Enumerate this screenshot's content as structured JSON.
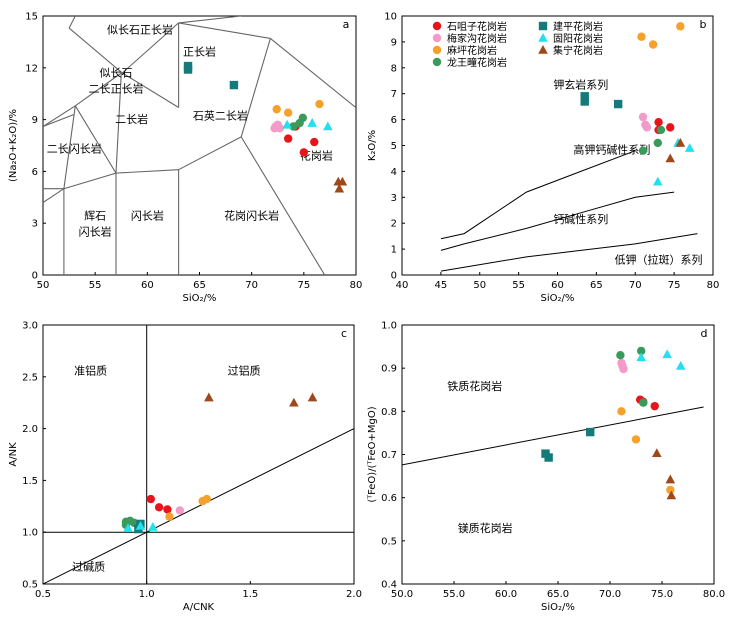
{
  "series_styles": [
    {
      "key": "shimingzi",
      "name": "石咀子花岗岩",
      "marker": "circle",
      "color": "#e8141c"
    },
    {
      "key": "meijiagou",
      "name": "梅家沟花岗岩",
      "marker": "circle",
      "color": "#f49ac8"
    },
    {
      "key": "mapo",
      "name": "麻坪花岗岩",
      "marker": "circle",
      "color": "#f5a12b"
    },
    {
      "key": "longwangzhuang",
      "name": "龙王疃花岗岩",
      "marker": "circle",
      "color": "#3a9a5c"
    },
    {
      "key": "jianping",
      "name": "建平花岗岩",
      "marker": "square",
      "color": "#147a7a"
    },
    {
      "key": "guyang",
      "name": "固阳花岗岩",
      "marker": "triangle",
      "color": "#22e0ef"
    },
    {
      "key": "jining",
      "name": "集宁花岗岩",
      "marker": "triangle",
      "color": "#a0481a"
    }
  ],
  "chart_data": [
    {
      "panel": "a",
      "type": "scatter",
      "xlabel": "SiO₂/%",
      "ylabel": "(Na₂O+K₂O)/%",
      "xlim": [
        50,
        80
      ],
      "ylim": [
        0,
        15
      ],
      "xticks": [
        50,
        55,
        60,
        65,
        70,
        75,
        80
      ],
      "yticks": [
        0,
        3,
        6,
        9,
        12,
        15
      ],
      "field_labels": [
        "似长石正长岩",
        "似长石\n二长正长岩",
        "二长岩",
        "二长闪长岩",
        "辉石\n闪长岩",
        "闪长岩",
        "正长岩",
        "石英二长岩",
        "花岗闪长岩",
        "花岗岩"
      ],
      "series": [
        {
          "key": "shimingzi",
          "points": [
            [
              73.5,
              7.9
            ],
            [
              75.0,
              7.1
            ],
            [
              76.0,
              7.7
            ],
            [
              74.2,
              8.6
            ]
          ]
        },
        {
          "key": "meijiagou",
          "points": [
            [
              72.3,
              8.6
            ],
            [
              72.5,
              8.7
            ],
            [
              72.7,
              8.5
            ],
            [
              72.2,
              8.5
            ]
          ]
        },
        {
          "key": "mapo",
          "points": [
            [
              72.4,
              9.6
            ],
            [
              73.5,
              9.4
            ],
            [
              76.5,
              9.9
            ]
          ]
        },
        {
          "key": "longwangzhuang",
          "points": [
            [
              74.6,
              8.8
            ],
            [
              74.9,
              9.1
            ],
            [
              74.0,
              8.6
            ]
          ]
        },
        {
          "key": "jianping",
          "points": [
            [
              63.9,
              12.1
            ],
            [
              63.9,
              11.9
            ],
            [
              68.3,
              11.0
            ]
          ]
        },
        {
          "key": "guyang",
          "points": [
            [
              73.4,
              8.7
            ],
            [
              75.8,
              8.8
            ],
            [
              77.3,
              8.6
            ]
          ]
        },
        {
          "key": "jining",
          "points": [
            [
              78.3,
              5.4
            ],
            [
              78.7,
              5.4
            ],
            [
              78.4,
              5.0
            ]
          ]
        }
      ]
    },
    {
      "panel": "b",
      "type": "scatter",
      "xlabel": "SiO₂/%",
      "ylabel": "K₂O/%",
      "xlim": [
        40,
        80
      ],
      "ylim": [
        0,
        10
      ],
      "xticks": [
        40,
        45,
        50,
        55,
        60,
        65,
        70,
        75,
        80
      ],
      "yticks": [
        0,
        1,
        2,
        3,
        4,
        5,
        6,
        7,
        8,
        9,
        10
      ],
      "field_labels": [
        "钾玄岩系列",
        "高钾钙碱性系列",
        "钙碱性系列",
        "低钾（拉斑）系列"
      ],
      "series": [
        {
          "key": "shimingzi",
          "points": [
            [
              73.0,
              5.9
            ],
            [
              74.5,
              5.7
            ],
            [
              73.0,
              5.6
            ]
          ]
        },
        {
          "key": "meijiagou",
          "points": [
            [
              71.0,
              6.1
            ],
            [
              71.3,
              5.8
            ],
            [
              71.5,
              5.7
            ]
          ]
        },
        {
          "key": "mapo",
          "points": [
            [
              70.8,
              9.2
            ],
            [
              72.3,
              8.9
            ],
            [
              75.8,
              9.6
            ]
          ]
        },
        {
          "key": "longwangzhuang",
          "points": [
            [
              73.3,
              5.6
            ],
            [
              72.9,
              5.1
            ],
            [
              71.0,
              4.8
            ]
          ]
        },
        {
          "key": "jianping",
          "points": [
            [
              63.5,
              6.9
            ],
            [
              63.5,
              6.7
            ],
            [
              67.8,
              6.6
            ]
          ]
        },
        {
          "key": "guyang",
          "points": [
            [
              75.5,
              5.1
            ],
            [
              77.0,
              4.9
            ],
            [
              72.9,
              3.6
            ]
          ]
        },
        {
          "key": "jining",
          "points": [
            [
              75.8,
              5.1
            ],
            [
              74.5,
              4.5
            ]
          ]
        }
      ]
    },
    {
      "panel": "c",
      "type": "scatter",
      "xlabel": "A/CNK",
      "ylabel": "A/NK",
      "xlim": [
        0.5,
        2.0
      ],
      "ylim": [
        0.5,
        3.0
      ],
      "xticks": [
        0.5,
        1.0,
        1.5,
        2.0
      ],
      "yticks": [
        0.5,
        1.0,
        1.5,
        2.0,
        2.5,
        3.0
      ],
      "field_labels": [
        "准铝质",
        "过铝质",
        "过碱质"
      ],
      "series": [
        {
          "key": "shimingzi",
          "points": [
            [
              1.02,
              1.32
            ],
            [
              1.06,
              1.24
            ],
            [
              1.1,
              1.22
            ]
          ]
        },
        {
          "key": "meijiagou",
          "points": [
            [
              1.16,
              1.21
            ]
          ]
        },
        {
          "key": "mapo",
          "points": [
            [
              1.11,
              1.15
            ],
            [
              1.27,
              1.3
            ],
            [
              1.29,
              1.32
            ]
          ]
        },
        {
          "key": "longwangzhuang",
          "points": [
            [
              0.9,
              1.1
            ],
            [
              0.92,
              1.11
            ],
            [
              0.9,
              1.07
            ],
            [
              0.94,
              1.09
            ]
          ]
        },
        {
          "key": "jianping",
          "points": [
            [
              0.97,
              1.08
            ],
            [
              0.96,
              1.03
            ]
          ]
        },
        {
          "key": "guyang",
          "points": [
            [
              0.91,
              1.04
            ],
            [
              0.97,
              1.06
            ],
            [
              1.03,
              1.05
            ]
          ]
        },
        {
          "key": "jining",
          "points": [
            [
              1.3,
              2.3
            ],
            [
              1.71,
              2.25
            ],
            [
              1.8,
              2.3
            ]
          ]
        }
      ]
    },
    {
      "panel": "d",
      "type": "scatter",
      "xlabel": "SiO₂/%",
      "ylabel": "(ᵀFeO)/(ᵀFeO+MgO)",
      "xlim": [
        50,
        80
      ],
      "ylim": [
        0.4,
        1.0
      ],
      "xticks": [
        50,
        55,
        60,
        65,
        70,
        75,
        80
      ],
      "yticks": [
        0.4,
        0.5,
        0.6,
        0.7,
        0.8,
        0.9,
        1.0
      ],
      "field_labels": [
        "铁质花岗岩",
        "镁质花岗岩"
      ],
      "series": [
        {
          "key": "shimingzi",
          "points": [
            [
              72.9,
              0.827
            ],
            [
              73.2,
              0.822
            ],
            [
              74.3,
              0.812
            ]
          ]
        },
        {
          "key": "meijiagou",
          "points": [
            [
              71.1,
              0.912
            ],
            [
              71.2,
              0.905
            ],
            [
              71.3,
              0.898
            ]
          ]
        },
        {
          "key": "mapo",
          "points": [
            [
              71.1,
              0.8
            ],
            [
              72.5,
              0.735
            ],
            [
              75.8,
              0.618
            ]
          ]
        },
        {
          "key": "longwangzhuang",
          "points": [
            [
              71.0,
              0.93
            ],
            [
              73.0,
              0.94
            ],
            [
              73.2,
              0.82
            ]
          ]
        },
        {
          "key": "jianping",
          "points": [
            [
              63.8,
              0.702
            ],
            [
              64.1,
              0.693
            ],
            [
              68.1,
              0.752
            ]
          ]
        },
        {
          "key": "guyang",
          "points": [
            [
              73.0,
              0.925
            ],
            [
              75.5,
              0.932
            ],
            [
              76.8,
              0.905
            ]
          ]
        },
        {
          "key": "jining",
          "points": [
            [
              74.5,
              0.703
            ],
            [
              75.8,
              0.642
            ],
            [
              75.9,
              0.605
            ]
          ]
        }
      ]
    }
  ]
}
